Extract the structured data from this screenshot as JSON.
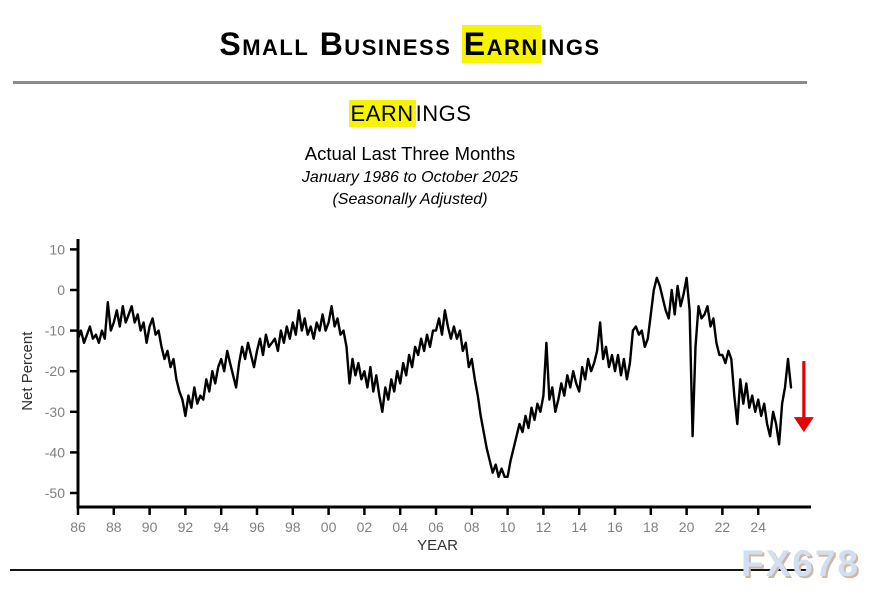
{
  "title": {
    "prefix": "Small Business ",
    "highlight": "Earn",
    "suffix": "ings"
  },
  "subtitle": {
    "highlight": "EARN",
    "rest": "INGS"
  },
  "sub": {
    "line2": "Actual Last Three Months",
    "line3": "January 1986 to October 2025",
    "line4": "(Seasonally Adjusted)"
  },
  "watermark": "FX678",
  "colors": {
    "highlight": "#f7f400",
    "line": "#000000",
    "axis": "#000000",
    "tick_text": "#808080",
    "axis_title_text": "#333333",
    "arrow": "#e80000"
  },
  "chart_data": {
    "type": "line",
    "title": "EARNINGS",
    "subtitle": "Actual Last Three Months",
    "period": "January 1986 to October 2025",
    "note": "(Seasonally Adjusted)",
    "xlabel": "YEAR",
    "ylabel": "Net Percent",
    "grid": false,
    "legend": null,
    "xlim": [
      1985.7,
      2027.0
    ],
    "ylim": [
      -54,
      12.5
    ],
    "y_ticks": [
      10,
      0,
      -10,
      -20,
      -30,
      -40,
      -50
    ],
    "y_tick_labels": [
      "10",
      "0",
      "-10",
      "-20",
      "-30",
      "-40",
      "-50"
    ],
    "x_ticks": [
      1986,
      1988,
      1990,
      1992,
      1994,
      1996,
      1998,
      2000,
      2002,
      2004,
      2006,
      2008,
      2010,
      2012,
      2014,
      2016,
      2018,
      2020,
      2022,
      2024
    ],
    "x_tick_labels": [
      "86",
      "88",
      "90",
      "92",
      "94",
      "96",
      "98",
      "00",
      "02",
      "04",
      "06",
      "08",
      "10",
      "12",
      "14",
      "16",
      "18",
      "20",
      "22",
      "24"
    ],
    "series_name": "Small Business Earnings, net percent (seasonally adjusted)",
    "x_start_year": 1986,
    "x_step_months": 2,
    "values": [
      -12,
      -10,
      -13,
      -11,
      -9,
      -12,
      -11,
      -13,
      -10,
      -12,
      -3,
      -10,
      -8,
      -5,
      -9,
      -4,
      -8,
      -6,
      -4,
      -8,
      -6,
      -10,
      -8,
      -13,
      -9,
      -7,
      -11,
      -10,
      -14,
      -17,
      -15,
      -19,
      -17,
      -22,
      -25,
      -27,
      -31,
      -26,
      -29,
      -24,
      -28,
      -26,
      -27,
      -22,
      -25,
      -20,
      -23,
      -19,
      -17,
      -20,
      -15,
      -18,
      -21,
      -24,
      -18,
      -14,
      -17,
      -13,
      -16,
      -19,
      -15,
      -12,
      -16,
      -11,
      -14,
      -13,
      -12,
      -15,
      -10,
      -13,
      -9,
      -12,
      -8,
      -11,
      -5,
      -10,
      -7,
      -11,
      -9,
      -12,
      -8,
      -10,
      -6,
      -10,
      -8,
      -4,
      -9,
      -7,
      -11,
      -10,
      -14,
      -23,
      -17,
      -21,
      -18,
      -22,
      -20,
      -24,
      -19,
      -25,
      -21,
      -26,
      -30,
      -24,
      -27,
      -22,
      -25,
      -20,
      -23,
      -18,
      -21,
      -16,
      -19,
      -14,
      -16,
      -12,
      -15,
      -11,
      -14,
      -10,
      -10,
      -7,
      -11,
      -5,
      -9,
      -12,
      -9,
      -12,
      -10,
      -15,
      -13,
      -19,
      -17,
      -22,
      -26,
      -31,
      -35,
      -39,
      -42,
      -45,
      -43,
      -46,
      -44,
      -46,
      -46,
      -42,
      -39,
      -36,
      -33,
      -35,
      -31,
      -34,
      -29,
      -32,
      -28,
      -30,
      -26,
      -13,
      -27,
      -24,
      -30,
      -27,
      -23,
      -26,
      -21,
      -24,
      -20,
      -23,
      -25,
      -19,
      -22,
      -17,
      -20,
      -18,
      -15,
      -8,
      -17,
      -14,
      -19,
      -16,
      -20,
      -16,
      -21,
      -17,
      -22,
      -18,
      -10,
      -9,
      -11,
      -10,
      -14,
      -12,
      -6,
      0,
      3,
      1,
      -2,
      -5,
      -7,
      0,
      -6,
      1,
      -4,
      -1,
      3,
      -5,
      -36,
      -14,
      -4,
      -7,
      -6,
      -4,
      -9,
      -7,
      -13,
      -16,
      -16,
      -18,
      -15,
      -17,
      -26,
      -33,
      -22,
      -28,
      -23,
      -29,
      -26,
      -30,
      -27,
      -31,
      -28,
      -33,
      -36,
      -30,
      -33,
      -38,
      -28,
      -24,
      -17,
      -24
    ],
    "annotation_arrow": {
      "x_year": 2026.55,
      "from_value": -17.5,
      "to_value": -35,
      "color": "#e80000"
    }
  }
}
